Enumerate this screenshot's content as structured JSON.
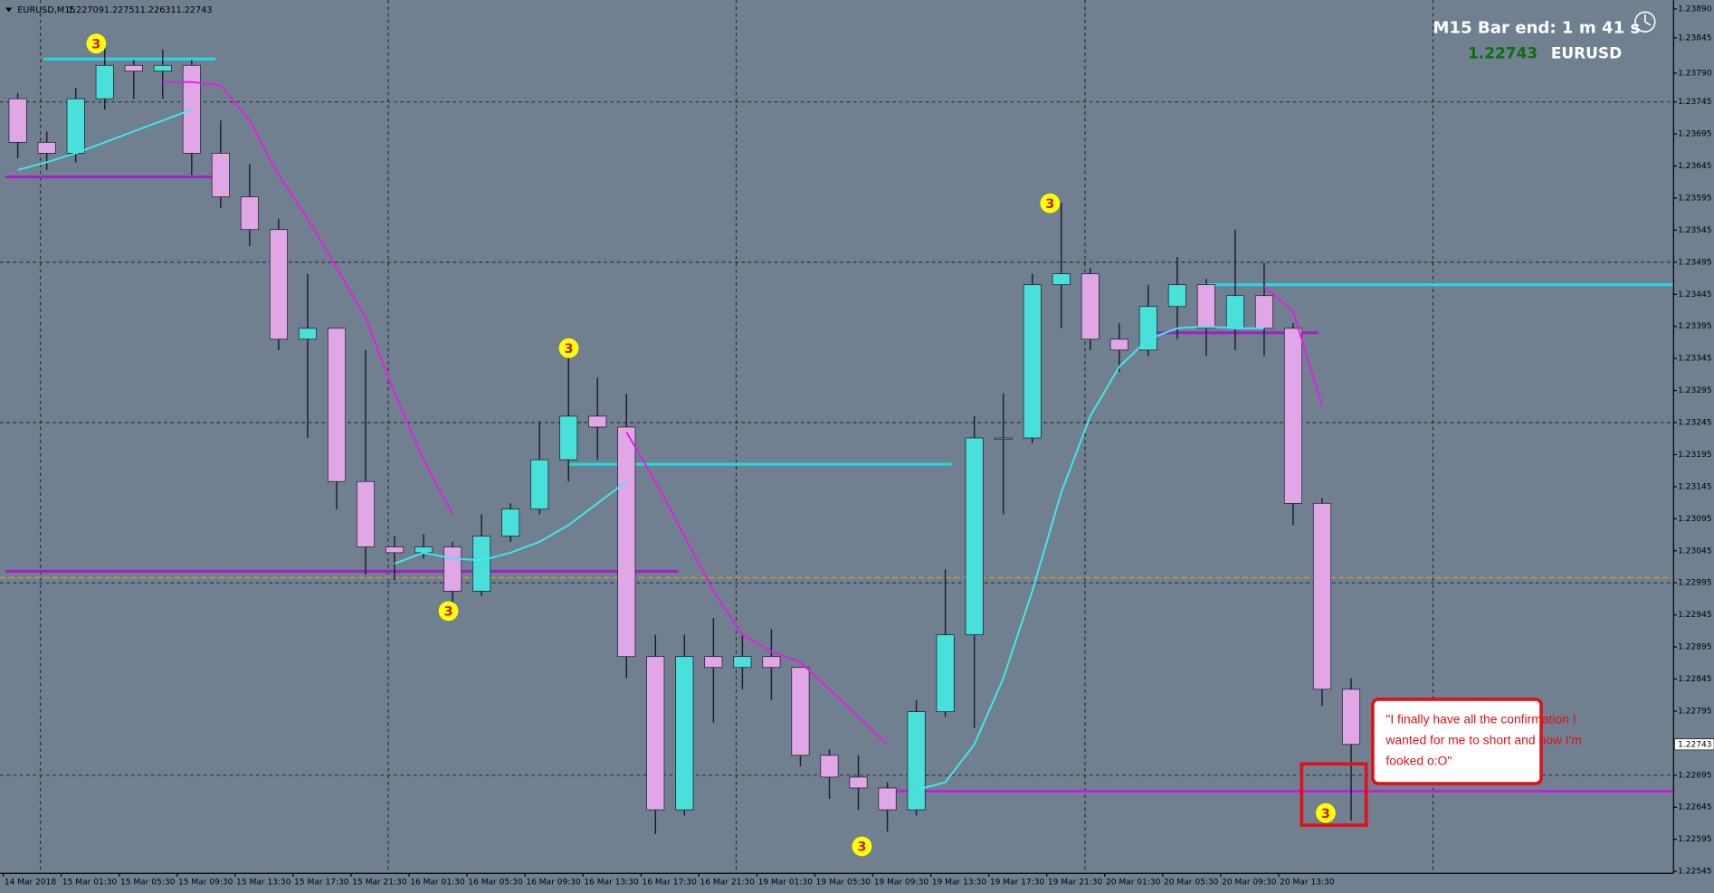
{
  "chart_data": {
    "type": "candlestick",
    "title": "EURUSD,M15",
    "header_prices": [
      1.22709,
      1.22751,
      1.22631,
      1.22743
    ],
    "categories": [
      "14 Mar 2018",
      null,
      "15 Mar 01:30",
      null,
      "15 Mar 05:30",
      null,
      "15 Mar 09:30",
      null,
      "15 Mar 13:30",
      null,
      "15 Mar 17:30",
      null,
      "15 Mar 21:30",
      null,
      "16 Mar 01:30",
      null,
      "16 Mar 05:30",
      null,
      "16 Mar 09:30",
      null,
      "16 Mar 13:30",
      null,
      "16 Mar 17:30",
      null,
      "16 Mar 21:30",
      null,
      "19 Mar 01:30",
      null,
      "19 Mar 05:30",
      null,
      "19 Mar 09:30",
      null,
      "19 Mar 13:30",
      null,
      "19 Mar 17:30",
      null,
      "19 Mar 21:30",
      null,
      "20 Mar 01:30",
      null,
      "20 Mar 05:30",
      null,
      "20 Mar 09:30",
      null,
      "20 Mar 13:30",
      null,
      null
    ],
    "open": [
      1.2375,
      1.23682,
      1.23665,
      1.2375,
      1.23802,
      1.23793,
      1.23802,
      1.23665,
      1.23597,
      1.23546,
      1.23375,
      1.23392,
      1.23153,
      1.23051,
      1.23042,
      1.23051,
      1.22982,
      1.23068,
      1.2311,
      1.23187,
      1.23255,
      1.23238,
      1.2288,
      1.22641,
      1.2288,
      1.22863,
      1.2288,
      1.22863,
      1.22726,
      1.22692,
      1.22675,
      1.22641,
      1.22794,
      1.22914,
      1.23221,
      1.23221,
      1.2346,
      1.23477,
      1.23375,
      1.23358,
      1.23426,
      1.2346,
      1.23392,
      1.23443,
      1.23392,
      1.23119,
      1.22829
    ],
    "high": [
      1.23759,
      1.23699,
      1.23767,
      1.23836,
      1.2381,
      1.23827,
      1.2381,
      1.23716,
      1.23648,
      1.23563,
      1.23477,
      1.23392,
      1.23358,
      1.23068,
      1.23071,
      1.23059,
      1.23102,
      1.23119,
      1.23247,
      1.23349,
      1.23315,
      1.2329,
      1.22914,
      1.22914,
      1.2294,
      1.22914,
      1.22923,
      1.22863,
      1.22735,
      1.22726,
      1.22684,
      1.22812,
      1.23016,
      1.23255,
      1.2329,
      1.23477,
      1.23588,
      1.23486,
      1.234,
      1.2346,
      1.23503,
      1.23469,
      1.23546,
      1.23494,
      1.234,
      1.23127,
      1.22846
    ],
    "low": [
      1.23657,
      1.23639,
      1.23651,
      1.23733,
      1.2375,
      1.2375,
      1.23631,
      1.2358,
      1.2352,
      1.23358,
      1.23221,
      1.2311,
      1.23008,
      1.22999,
      1.23033,
      1.22948,
      1.22974,
      1.23059,
      1.23102,
      1.23153,
      1.23187,
      1.22846,
      1.22603,
      1.22632,
      1.22777,
      1.22829,
      1.22812,
      1.22709,
      1.22658,
      1.22641,
      1.22607,
      1.22632,
      1.22786,
      1.22769,
      1.23102,
      1.23213,
      1.23392,
      1.23358,
      1.23324,
      1.23349,
      1.23375,
      1.23349,
      1.23358,
      1.23349,
      1.23085,
      1.22803,
      1.22624
    ],
    "close": [
      1.23682,
      1.23665,
      1.2375,
      1.23802,
      1.23793,
      1.23802,
      1.23665,
      1.23597,
      1.23546,
      1.23375,
      1.23392,
      1.23153,
      1.23051,
      1.23042,
      1.23051,
      1.22982,
      1.23068,
      1.2311,
      1.23187,
      1.23255,
      1.23238,
      1.2288,
      1.22641,
      1.2288,
      1.22863,
      1.2288,
      1.22863,
      1.22726,
      1.22692,
      1.22675,
      1.22641,
      1.22794,
      1.22914,
      1.23221,
      1.23221,
      1.2346,
      1.23477,
      1.23375,
      1.23358,
      1.23426,
      1.2346,
      1.23392,
      1.23443,
      1.23392,
      1.23119,
      1.22829,
      1.22743
    ],
    "up_color": "#48e0d8",
    "down_color": "#e0a6e6",
    "wick_color": "#1c1c30",
    "overlays": [
      {
        "color": "#e020e0",
        "values": [
          null,
          null,
          null,
          null,
          null,
          1.23776,
          1.23776,
          1.23771,
          1.23716,
          1.23631,
          1.23563,
          1.23486,
          1.23409,
          1.2329,
          1.23187,
          1.23102,
          null,
          null,
          null,
          null,
          null,
          1.2323,
          1.23153,
          1.23068,
          1.22982,
          1.22914,
          1.22888,
          1.22871,
          1.22829,
          1.22786,
          1.22743,
          null,
          null,
          null,
          null,
          null,
          null,
          null,
          null,
          null,
          null,
          null,
          null,
          1.23457,
          1.23418,
          1.23272,
          null
        ]
      },
      {
        "color": "#40e8f0",
        "values": [
          1.23639,
          1.23651,
          1.23665,
          1.23682,
          1.23699,
          1.23716,
          1.23733,
          null,
          null,
          null,
          null,
          null,
          null,
          1.23025,
          1.23042,
          1.23033,
          1.2303,
          1.23042,
          1.23059,
          1.23085,
          1.23119,
          1.23153,
          null,
          null,
          null,
          null,
          null,
          null,
          null,
          null,
          null,
          1.22672,
          1.22684,
          1.22743,
          1.22846,
          1.22982,
          1.23136,
          1.23255,
          1.23332,
          1.23375,
          1.23392,
          1.23395,
          1.23392,
          1.23392,
          null,
          null,
          null
        ]
      }
    ],
    "levels": [
      {
        "value": 1.23628,
        "color": "#a020c8"
      },
      {
        "value": 1.23013,
        "color": "#a020c8"
      },
      {
        "value": 1.2267,
        "color": "#c020d8"
      },
      {
        "value": 1.2346,
        "color": "#20dce8"
      },
      {
        "value": 1.2318,
        "color": "#20dce8"
      },
      {
        "value": 1.23812,
        "color": "#20dce8"
      },
      {
        "value": 1.23385,
        "color": "#a020c8"
      },
      {
        "value": 1.23003,
        "color": "#e09a20",
        "dashed": true
      }
    ],
    "markers": {
      "label": "3",
      "values": [
        1.23836,
        1.23361,
        1.22951,
        1.23587,
        1.22584,
        1.22636
      ]
    },
    "ylim": [
      1.22542,
      1.23904
    ],
    "yticks": [
      {
        "value": 1.2389,
        "label": "1.23890"
      },
      1.23845,
      {
        "value": 1.2379,
        "label": "1.23790"
      },
      1.23745,
      1.23695,
      1.23645,
      1.23595,
      1.23545,
      1.23495,
      1.23445,
      1.23395,
      1.23345,
      1.23295,
      1.23245,
      1.23195,
      1.23145,
      1.23095,
      1.23045,
      1.22995,
      1.22945,
      1.22895,
      1.22845,
      1.22795,
      1.22695,
      1.22645,
      1.22595,
      1.22545
    ],
    "grid": true,
    "current_price": 1.22743,
    "info": {
      "bar_end": "M15 Bar end: 1 m 41 s",
      "price": 1.22743,
      "symbol": "EURUSD"
    },
    "annotation": [
      "\"I finally have all the confirmation I",
      "wanted for me to short and now I'm",
      "fooked o:O\""
    ]
  }
}
